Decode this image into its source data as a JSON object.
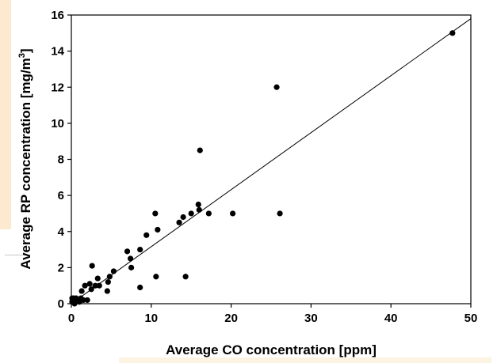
{
  "chart_data": {
    "type": "scatter",
    "title": "",
    "xlabel": "Average CO concentration [ppm]",
    "ylabel_main": "Average RP concentration [mg/m",
    "ylabel_sup": "3",
    "ylabel_close": "]",
    "xlim": [
      0,
      50
    ],
    "ylim": [
      0,
      16
    ],
    "x_ticks": [
      0,
      10,
      20,
      30,
      40,
      50
    ],
    "y_ticks": [
      0,
      2,
      4,
      6,
      8,
      10,
      12,
      14,
      16
    ],
    "grid": false,
    "legend": "none",
    "marker_color": "#000000",
    "fit_line": {
      "x": [
        0,
        50
      ],
      "y": [
        0,
        15.8
      ]
    },
    "points": [
      {
        "x": 0.1,
        "y": 0.1
      },
      {
        "x": 0.2,
        "y": 0.2
      },
      {
        "x": 0.3,
        "y": 0.3
      },
      {
        "x": 0.1,
        "y": 0.3
      },
      {
        "x": 0.5,
        "y": 0.1
      },
      {
        "x": 0.6,
        "y": 0.3
      },
      {
        "x": 0.4,
        "y": 0.0
      },
      {
        "x": 0.8,
        "y": 0.2
      },
      {
        "x": 1.0,
        "y": 0.1
      },
      {
        "x": 1.2,
        "y": 0.3
      },
      {
        "x": 1.3,
        "y": 0.7
      },
      {
        "x": 1.5,
        "y": 0.2
      },
      {
        "x": 1.7,
        "y": 1.0
      },
      {
        "x": 2.0,
        "y": 0.2
      },
      {
        "x": 2.3,
        "y": 1.1
      },
      {
        "x": 2.5,
        "y": 0.8
      },
      {
        "x": 2.6,
        "y": 2.1
      },
      {
        "x": 3.0,
        "y": 1.0
      },
      {
        "x": 3.3,
        "y": 1.4
      },
      {
        "x": 3.5,
        "y": 1.0
      },
      {
        "x": 4.5,
        "y": 0.7
      },
      {
        "x": 4.6,
        "y": 1.2
      },
      {
        "x": 4.8,
        "y": 1.5
      },
      {
        "x": 5.3,
        "y": 1.8
      },
      {
        "x": 7.0,
        "y": 2.9
      },
      {
        "x": 7.4,
        "y": 2.5
      },
      {
        "x": 7.5,
        "y": 2.0
      },
      {
        "x": 8.6,
        "y": 0.9
      },
      {
        "x": 8.6,
        "y": 3.0
      },
      {
        "x": 9.4,
        "y": 3.8
      },
      {
        "x": 10.5,
        "y": 5.0
      },
      {
        "x": 10.6,
        "y": 1.5
      },
      {
        "x": 10.8,
        "y": 4.1
      },
      {
        "x": 13.5,
        "y": 4.5
      },
      {
        "x": 14.0,
        "y": 4.8
      },
      {
        "x": 14.3,
        "y": 1.5
      },
      {
        "x": 15.0,
        "y": 5.0
      },
      {
        "x": 15.9,
        "y": 5.5
      },
      {
        "x": 16.0,
        "y": 5.2
      },
      {
        "x": 16.1,
        "y": 8.5
      },
      {
        "x": 17.2,
        "y": 5.0
      },
      {
        "x": 20.2,
        "y": 5.0
      },
      {
        "x": 25.7,
        "y": 12.0
      },
      {
        "x": 26.1,
        "y": 5.0
      },
      {
        "x": 47.7,
        "y": 15.0
      }
    ]
  }
}
